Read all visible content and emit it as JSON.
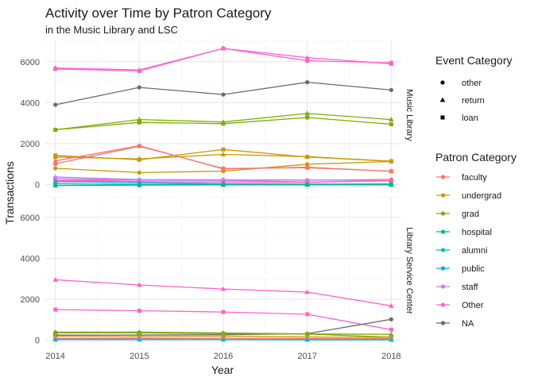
{
  "chart_data": {
    "type": "line",
    "title": "Activity over Time by Patron Category",
    "subtitle": "in the Music Library and LSC",
    "xlabel": "Year",
    "ylabel": "Transactions",
    "x": [
      2014,
      2015,
      2016,
      2017,
      2018
    ],
    "ylim": [
      -400,
      7000
    ],
    "yticks": [
      0,
      2000,
      4000,
      6000
    ],
    "grid": true,
    "legend_placement": "right",
    "facets": [
      "Music Library",
      "Library Service Center"
    ],
    "legends": {
      "event": {
        "title": "Event Category",
        "items": [
          {
            "label": "other",
            "shape": "circle"
          },
          {
            "label": "return",
            "shape": "triangle"
          },
          {
            "label": "loan",
            "shape": "square"
          }
        ]
      },
      "patron": {
        "title": "Patron Category",
        "items": [
          {
            "label": "faculty",
            "color": "#F8766D"
          },
          {
            "label": "undergrad",
            "color": "#CD9600"
          },
          {
            "label": "grad",
            "color": "#7CAE00"
          },
          {
            "label": "hospital",
            "color": "#00BE67"
          },
          {
            "label": "alumni",
            "color": "#00BFC4"
          },
          {
            "label": "public",
            "color": "#00A9FF"
          },
          {
            "label": "staff",
            "color": "#C77CFF"
          },
          {
            "label": "Other",
            "color": "#FF61CC"
          },
          {
            "label": "NA",
            "color": "#6B6B6B"
          }
        ]
      }
    },
    "series": [
      {
        "facet": "Music Library",
        "patron": "Other",
        "event": "return",
        "values": [
          5700,
          5600,
          6650,
          6200,
          5900
        ]
      },
      {
        "facet": "Music Library",
        "patron": "Other",
        "event": "loan",
        "values": [
          5650,
          5550,
          6650,
          6050,
          5950
        ]
      },
      {
        "facet": "Music Library",
        "patron": "NA",
        "event": "other",
        "values": [
          3900,
          4750,
          4400,
          5000,
          4620
        ]
      },
      {
        "facet": "Music Library",
        "patron": "grad",
        "event": "return",
        "values": [
          2680,
          3180,
          3060,
          3480,
          3180
        ]
      },
      {
        "facet": "Music Library",
        "patron": "grad",
        "event": "loan",
        "values": [
          2680,
          3040,
          2980,
          3280,
          2950
        ]
      },
      {
        "facet": "Music Library",
        "patron": "undergrad",
        "event": "loan",
        "values": [
          1430,
          1220,
          1720,
          1350,
          1150
        ]
      },
      {
        "facet": "Music Library",
        "patron": "undergrad",
        "event": "return",
        "values": [
          1350,
          1260,
          1480,
          1370,
          1140
        ]
      },
      {
        "facet": "Music Library",
        "patron": "undergrad",
        "event": "other",
        "values": [
          800,
          590,
          660,
          1000,
          1130
        ]
      },
      {
        "facet": "Music Library",
        "patron": "faculty",
        "event": "return",
        "values": [
          1160,
          1900,
          770,
          850,
          650
        ]
      },
      {
        "facet": "Music Library",
        "patron": "faculty",
        "event": "loan",
        "values": [
          1020,
          1880,
          790,
          830,
          660
        ]
      },
      {
        "facet": "Music Library",
        "patron": "faculty",
        "event": "other",
        "values": [
          220,
          220,
          240,
          220,
          260
        ]
      },
      {
        "facet": "Music Library",
        "patron": "staff",
        "event": "return",
        "values": [
          380,
          250,
          240,
          230,
          200
        ]
      },
      {
        "facet": "Music Library",
        "patron": "staff",
        "event": "loan",
        "values": [
          300,
          220,
          210,
          130,
          180
        ]
      },
      {
        "facet": "Music Library",
        "patron": "Other",
        "event": "other",
        "values": [
          200,
          150,
          130,
          110,
          200
        ]
      },
      {
        "facet": "Music Library",
        "patron": "public",
        "event": "return",
        "values": [
          150,
          100,
          50,
          30,
          40
        ]
      },
      {
        "facet": "Music Library",
        "patron": "alumni",
        "event": "loan",
        "values": [
          50,
          20,
          20,
          20,
          20
        ]
      },
      {
        "facet": "Music Library",
        "patron": "hospital",
        "event": "return",
        "values": [
          -40,
          -20,
          -10,
          -10,
          -10
        ]
      },
      {
        "facet": "Library Service Center",
        "patron": "Other",
        "event": "return",
        "values": [
          2950,
          2700,
          2500,
          2350,
          1680
        ]
      },
      {
        "facet": "Library Service Center",
        "patron": "Other",
        "event": "loan",
        "values": [
          1500,
          1440,
          1380,
          1270,
          520
        ]
      },
      {
        "facet": "Library Service Center",
        "patron": "NA",
        "event": "other",
        "values": [
          250,
          260,
          270,
          320,
          1020
        ]
      },
      {
        "facet": "Library Service Center",
        "patron": "grad",
        "event": "return",
        "values": [
          400,
          400,
          360,
          310,
          290
        ]
      },
      {
        "facet": "Library Service Center",
        "patron": "grad",
        "event": "loan",
        "values": [
          360,
          360,
          320,
          300,
          150
        ]
      },
      {
        "facet": "Library Service Center",
        "patron": "undergrad",
        "event": "return",
        "values": [
          200,
          200,
          200,
          160,
          140
        ]
      },
      {
        "facet": "Library Service Center",
        "patron": "faculty",
        "event": "return",
        "values": [
          100,
          110,
          100,
          90,
          80
        ]
      },
      {
        "facet": "Library Service Center",
        "patron": "staff",
        "event": "loan",
        "values": [
          60,
          60,
          50,
          40,
          40
        ]
      },
      {
        "facet": "Library Service Center",
        "patron": "alumni",
        "event": "return",
        "values": [
          30,
          30,
          30,
          20,
          20
        ]
      }
    ]
  }
}
